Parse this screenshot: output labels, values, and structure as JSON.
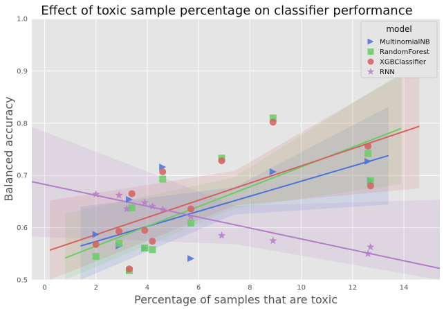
{
  "chart_data": {
    "type": "scatter",
    "title": "Effect of toxic sample percentage on classifier performance",
    "xlabel": "Percentage of samples that are toxic",
    "ylabel": "Balanced accuracy",
    "xlim": [
      -0.5,
      15.4
    ],
    "ylim": [
      0.5,
      1.0
    ],
    "xticks": [
      "0",
      "2",
      "4",
      "6",
      "8",
      "10",
      "12",
      "14"
    ],
    "yticks": [
      "0.5",
      "0.6",
      "0.7",
      "0.8",
      "0.9",
      "1.0"
    ],
    "grid": true,
    "legend": {
      "title": "model",
      "placement": "top-right"
    },
    "series": [
      {
        "name": "MultinomialNB",
        "color": "#4c72d8",
        "marker": "triangle-right",
        "points": [
          [
            2.0,
            0.587
          ],
          [
            2.9,
            0.565
          ],
          [
            3.3,
            0.518
          ],
          [
            3.3,
            0.654
          ],
          [
            3.9,
            0.56
          ],
          [
            4.6,
            0.716
          ],
          [
            5.7,
            0.541
          ],
          [
            8.9,
            0.707
          ],
          [
            12.6,
            0.727
          ],
          [
            12.7,
            0.69
          ]
        ],
        "fit": {
          "x0": 1.4,
          "y0": 0.565,
          "x1": 13.4,
          "y1": 0.738
        }
      },
      {
        "name": "RandomForest",
        "color": "#6acc64",
        "marker": "square",
        "points": [
          [
            2.0,
            0.545
          ],
          [
            2.9,
            0.57
          ],
          [
            3.3,
            0.518
          ],
          [
            3.4,
            0.638
          ],
          [
            3.9,
            0.561
          ],
          [
            4.2,
            0.558
          ],
          [
            4.6,
            0.693
          ],
          [
            5.7,
            0.609
          ],
          [
            6.9,
            0.733
          ],
          [
            8.9,
            0.81
          ],
          [
            12.6,
            0.742
          ],
          [
            12.7,
            0.69
          ]
        ],
        "fit": {
          "x0": 0.8,
          "y0": 0.542,
          "x1": 13.9,
          "y1": 0.79
        }
      },
      {
        "name": "XGBClassifier",
        "color": "#d65f5f",
        "marker": "circle",
        "points": [
          [
            2.0,
            0.568
          ],
          [
            2.9,
            0.593
          ],
          [
            3.3,
            0.521
          ],
          [
            3.4,
            0.665
          ],
          [
            3.9,
            0.595
          ],
          [
            4.2,
            0.574
          ],
          [
            4.6,
            0.707
          ],
          [
            5.7,
            0.636
          ],
          [
            6.9,
            0.728
          ],
          [
            8.9,
            0.802
          ],
          [
            12.6,
            0.756
          ],
          [
            12.7,
            0.68
          ]
        ],
        "fit": {
          "x0": 0.2,
          "y0": 0.557,
          "x1": 14.6,
          "y1": 0.794
        }
      },
      {
        "name": "RNN",
        "color": "#b47cc7",
        "marker": "star",
        "points": [
          [
            2.0,
            0.664
          ],
          [
            2.9,
            0.662
          ],
          [
            3.2,
            0.636
          ],
          [
            3.9,
            0.648
          ],
          [
            4.2,
            0.641
          ],
          [
            4.6,
            0.635
          ],
          [
            5.7,
            0.621
          ],
          [
            6.9,
            0.585
          ],
          [
            8.9,
            0.575
          ],
          [
            12.6,
            0.55
          ],
          [
            12.7,
            0.563
          ]
        ],
        "fit": {
          "x0": -0.5,
          "y0": 0.688,
          "x1": 15.4,
          "y1": 0.522
        }
      }
    ]
  }
}
